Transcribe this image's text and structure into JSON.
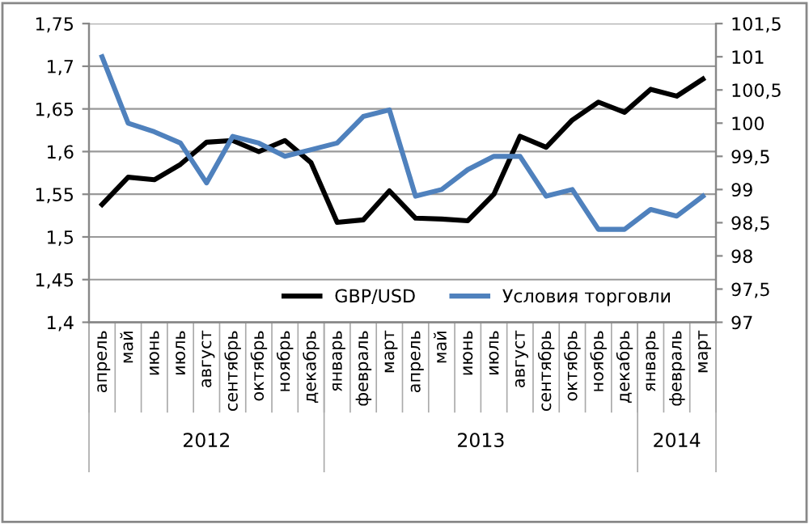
{
  "chart_data": {
    "type": "line",
    "categories": [
      "апрель",
      "май",
      "июнь",
      "июль",
      "август",
      "сентябрь",
      "октябрь",
      "ноябрь",
      "декабрь",
      "январь",
      "февраль",
      "март",
      "апрель",
      "май",
      "июнь",
      "июль",
      "август",
      "сентябрь",
      "октябрь",
      "ноябрь",
      "декабрь",
      "январь",
      "февраль",
      "март"
    ],
    "series": [
      {
        "name": "GBP/USD",
        "color": "#000000",
        "values": [
          1.538,
          1.57,
          1.567,
          1.585,
          1.611,
          1.613,
          1.6,
          1.613,
          1.587,
          1.517,
          1.52,
          1.554,
          1.522,
          1.521,
          1.519,
          1.55,
          1.618,
          1.605,
          1.637,
          1.658,
          1.646,
          1.673,
          1.665,
          1.685
        ]
      },
      {
        "name": "Условия торговли",
        "color": "#4f81bd",
        "axis": "y2",
        "values": [
          101.0,
          100.0,
          99.87,
          99.7,
          99.1,
          99.8,
          99.7,
          99.5,
          99.6,
          99.7,
          100.1,
          100.2,
          98.9,
          99.0,
          99.3,
          99.5,
          99.5,
          98.9,
          99.0,
          98.4,
          98.4,
          98.7,
          98.6,
          98.9
        ]
      }
    ],
    "ylim": [
      1.4,
      1.75
    ],
    "yticks": [
      {
        "value": 1.4,
        "label": "1,4"
      },
      {
        "value": 1.45,
        "label": "1,45"
      },
      {
        "value": 1.5,
        "label": "1,5"
      },
      {
        "value": 1.55,
        "label": "1,55"
      },
      {
        "value": 1.6,
        "label": "1,6"
      },
      {
        "value": 1.65,
        "label": "1,65"
      },
      {
        "value": 1.7,
        "label": "1,7"
      },
      {
        "value": 1.75,
        "label": "1,75"
      }
    ],
    "y2lim": [
      97,
      101.5
    ],
    "y2ticks": [
      97,
      {
        "value": 97.5,
        "label": "97,5"
      },
      98,
      {
        "value": 98.5,
        "label": "98,5"
      },
      99,
      {
        "value": 99.5,
        "label": "99,5"
      },
      100,
      {
        "value": 100.5,
        "label": "100,5"
      },
      101,
      {
        "value": 101.5,
        "label": "101,5"
      }
    ],
    "annotations": [
      "2012",
      "2013",
      "2014"
    ],
    "grid": "y",
    "legend": "bottom",
    "marker": "none",
    "line_style": "solid"
  }
}
